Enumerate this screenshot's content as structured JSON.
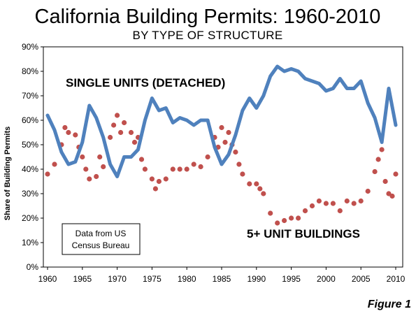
{
  "chart_data": {
    "type": "line",
    "title": "California Building Permits: 1960-2010",
    "subtitle": "BY TYPE OF STRUCTURE",
    "ylabel": "Share of Building Permits",
    "xlabel": "",
    "ylim": [
      0,
      90
    ],
    "xlim": [
      1960,
      2010
    ],
    "yticks": [
      "0%",
      "10%",
      "20%",
      "30%",
      "40%",
      "50%",
      "60%",
      "70%",
      "80%",
      "90%"
    ],
    "xticks": [
      "1960",
      "1965",
      "1970",
      "1975",
      "1980",
      "1985",
      "1990",
      "1995",
      "2000",
      "2005",
      "2010"
    ],
    "grid": "none",
    "series": [
      {
        "name": "SINGLE UNITS (DETACHED)",
        "style": "line",
        "color": "#4f81bd",
        "x": [
          1960,
          1961,
          1962,
          1963,
          1964,
          1965,
          1966,
          1967,
          1968,
          1969,
          1970,
          1971,
          1972,
          1973,
          1974,
          1975,
          1976,
          1977,
          1978,
          1979,
          1980,
          1981,
          1982,
          1983,
          1984,
          1985,
          1986,
          1987,
          1988,
          1989,
          1990,
          1991,
          1992,
          1993,
          1994,
          1995,
          1996,
          1997,
          1998,
          1999,
          2000,
          2001,
          2002,
          2003,
          2004,
          2005,
          2006,
          2007,
          2008,
          2009,
          2010
        ],
        "values": [
          62,
          56,
          47,
          42,
          43,
          51,
          66,
          61,
          53,
          42,
          37,
          45,
          45,
          48,
          60,
          69,
          64,
          65,
          59,
          61,
          60,
          58,
          60,
          60,
          49,
          42,
          46,
          54,
          64,
          69,
          65,
          70,
          78,
          82,
          80,
          81,
          80,
          77,
          76,
          75,
          72,
          73,
          77,
          73,
          73,
          76,
          67,
          61,
          51,
          73,
          58
        ]
      },
      {
        "name": "5+ UNIT BUILDINGS",
        "style": "dots",
        "color": "#c0504d",
        "x": [
          1960,
          1961,
          1962,
          1963,
          1964,
          1965,
          1966,
          1967,
          1968,
          1969,
          1970,
          1971,
          1972,
          1973,
          1974,
          1975,
          1976,
          1977,
          1978,
          1979,
          1980,
          1981,
          1982,
          1983,
          1984,
          1985,
          1986,
          1987,
          1988,
          1989,
          1990,
          1991,
          1992,
          1993,
          1994,
          1995,
          1996,
          1997,
          1998,
          1999,
          2000,
          2001,
          2002,
          2003,
          2004,
          2005,
          2006,
          2007,
          2008,
          2009,
          2010,
          1962.5,
          1964.5,
          1965.5,
          1967.5,
          1969.5,
          1970.5,
          1972.5,
          1973.5,
          1975.5,
          1984.5,
          1985.5,
          1986.5,
          1987.5,
          1990.5,
          2007.5,
          2008.5,
          2009.5
        ],
        "values": [
          38,
          42,
          50,
          55,
          54,
          45,
          36,
          37,
          41,
          53,
          62,
          59,
          55,
          53,
          40,
          36,
          35,
          36,
          40,
          40,
          40,
          42,
          41,
          45,
          53,
          57,
          55,
          47,
          38,
          34,
          34,
          30,
          22,
          18,
          19,
          20,
          20,
          23,
          25,
          27,
          26,
          26,
          23,
          27,
          26,
          27,
          31,
          39,
          48,
          30,
          38,
          57,
          49,
          40,
          45,
          58,
          55,
          51,
          44,
          32,
          49,
          51,
          50,
          42,
          32,
          44,
          35,
          29
        ]
      }
    ],
    "annotations": {
      "single_units": "SINGLE UNITS (DETACHED)",
      "multi_units": "5+ UNIT BUILDINGS",
      "source_line1": "Data from US",
      "source_line2": "Census Bureau"
    },
    "caption": "Figure 1"
  }
}
